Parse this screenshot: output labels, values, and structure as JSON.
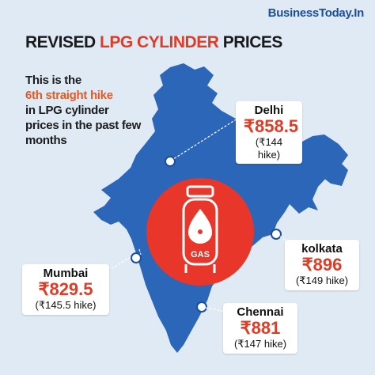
{
  "brand": "BusinessToday.In",
  "headline": {
    "part1": "REVISED ",
    "part2": "LPG CYLINDER",
    "part3": " PRICES"
  },
  "intro": {
    "line1": "This is the",
    "emphasis": "6th straight hike",
    "line3": "in LPG cylinder prices in the past few months"
  },
  "badge": {
    "text": "GAS"
  },
  "cities": [
    {
      "name": "Delhi",
      "price": "₹858.5",
      "hike": "(₹144 hike)"
    },
    {
      "name": "kolkata",
      "price": "₹896",
      "hike": "(₹149 hike)"
    },
    {
      "name": "Mumbai",
      "price": "₹829.5",
      "hike": "(₹145.5 hike)"
    },
    {
      "name": "Chennai",
      "price": "₹881",
      "hike": "(₹147 hike)"
    }
  ],
  "colors": {
    "background": "#dfeaf4",
    "map": "#2b66b8",
    "accent": "#e03b26",
    "circle": "#e8362a"
  }
}
